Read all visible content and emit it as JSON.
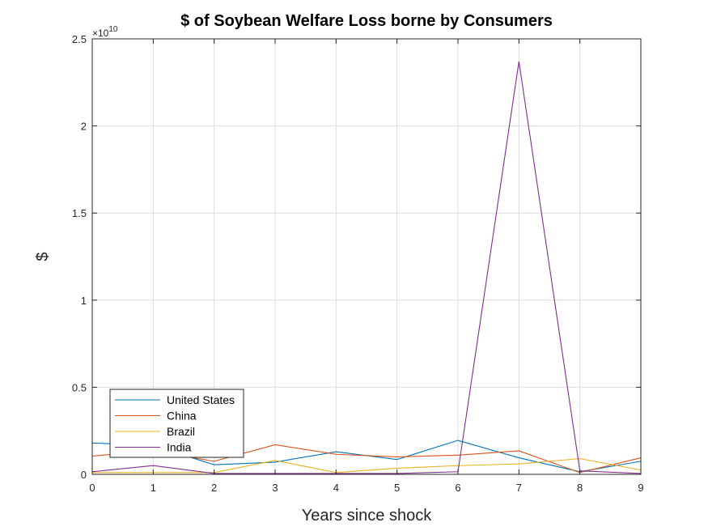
{
  "chart_data": {
    "type": "line",
    "title": "$  of Soybean Welfare Loss borne by Consumers",
    "xlabel": "Years since shock",
    "ylabel": "$",
    "y_exponent_label": "×10",
    "y_exponent_power": "10",
    "x": [
      0,
      1,
      2,
      3,
      4,
      5,
      6,
      7,
      8,
      9
    ],
    "xlim": [
      0,
      9
    ],
    "ylim": [
      0,
      25000000000
    ],
    "x_ticks": [
      "0",
      "1",
      "2",
      "3",
      "4",
      "5",
      "6",
      "7",
      "8",
      "9"
    ],
    "y_ticks": [
      {
        "value": 0,
        "label": "0"
      },
      {
        "value": 5000000000,
        "label": "0.5"
      },
      {
        "value": 10000000000,
        "label": "1"
      },
      {
        "value": 15000000000,
        "label": "1.5"
      },
      {
        "value": 20000000000,
        "label": "2"
      },
      {
        "value": 25000000000,
        "label": "2.5"
      }
    ],
    "grid": true,
    "legend_position": "bottom-left",
    "series": [
      {
        "name": "United States",
        "color": "#0072BD",
        "values": [
          1800000000,
          1650000000,
          550000000,
          700000000,
          1300000000,
          850000000,
          1950000000,
          950000000,
          150000000,
          750000000
        ]
      },
      {
        "name": "China",
        "color": "#D95319",
        "values": [
          1050000000,
          1350000000,
          750000000,
          1700000000,
          1150000000,
          1000000000,
          1100000000,
          1350000000,
          100000000,
          950000000
        ]
      },
      {
        "name": "Brazil",
        "color": "#EDB120",
        "values": [
          100000000,
          100000000,
          100000000,
          800000000,
          100000000,
          350000000,
          500000000,
          600000000,
          900000000,
          250000000
        ]
      },
      {
        "name": "India",
        "color": "#7E2F8E",
        "values": [
          150000000,
          500000000,
          50000000,
          50000000,
          50000000,
          50000000,
          150000000,
          23700000000,
          200000000,
          50000000
        ]
      }
    ]
  }
}
